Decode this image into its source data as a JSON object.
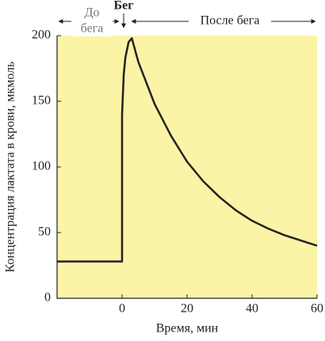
{
  "chart_data": {
    "type": "line",
    "x_label": "Время, мин",
    "y_label": "Концентрация лактата в крови, мкмоль",
    "annotations": [
      "До",
      "бега",
      "Бег",
      "После бега"
    ],
    "x": [
      -20,
      0,
      0,
      0.5,
      1,
      2,
      3,
      5,
      10,
      15,
      20,
      25,
      30,
      35,
      40,
      45,
      50,
      55,
      60
    ],
    "values": [
      28,
      28,
      140,
      170,
      183,
      195,
      198,
      180,
      148,
      124,
      104,
      89,
      77,
      67,
      59,
      53,
      48,
      44,
      40
    ],
    "color": "#222222",
    "background": "#fbf3a6",
    "xlim": [
      -20,
      60
    ],
    "xticks": [
      0,
      20,
      40,
      60
    ],
    "ylim": [
      0,
      200
    ],
    "yticks": [
      0,
      50,
      100,
      150,
      200
    ]
  }
}
